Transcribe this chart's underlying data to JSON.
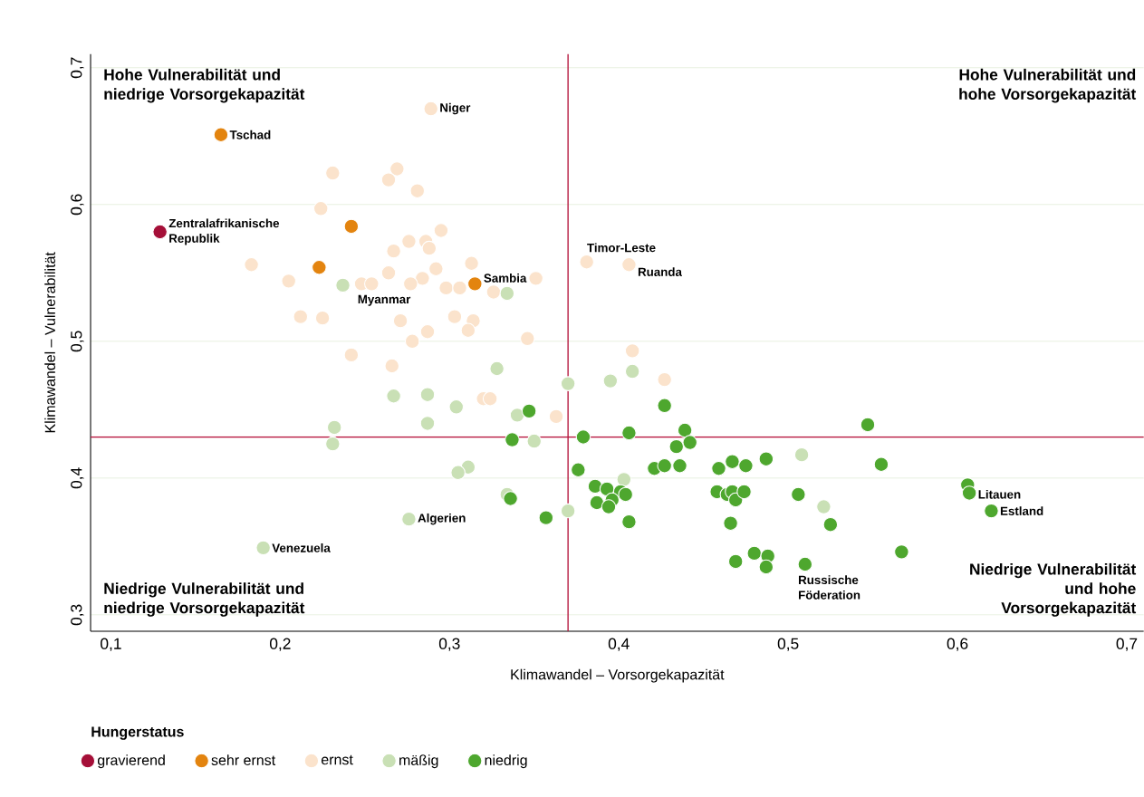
{
  "chart_data": {
    "type": "scatter",
    "xlabel": "Klimawandel – Vorsorgekapazität",
    "ylabel": "Klimawandel – Vulnerabilität",
    "legend_title": "Hungerstatus",
    "legend": "bottom",
    "grid": "y",
    "marker": "circle",
    "xlim": [
      0.088,
      0.71
    ],
    "ylim": [
      0.288,
      0.71
    ],
    "xticks": [
      {
        "value": 0.1,
        "label": "0,1"
      },
      {
        "value": 0.2,
        "label": "0,2"
      },
      {
        "value": 0.3,
        "label": "0,3"
      },
      {
        "value": 0.4,
        "label": "0,4"
      },
      {
        "value": 0.5,
        "label": "0,5"
      },
      {
        "value": 0.6,
        "label": "0,6"
      },
      {
        "value": 0.7,
        "label": "0,7"
      }
    ],
    "yticks": [
      {
        "value": 0.3,
        "label": "0,3"
      },
      {
        "value": 0.4,
        "label": "0,4"
      },
      {
        "value": 0.5,
        "label": "0,5"
      },
      {
        "value": 0.6,
        "label": "0,6"
      },
      {
        "value": 0.7,
        "label": "0,7"
      }
    ],
    "ref_lines": [
      {
        "axis": "x",
        "value": 0.37,
        "color": "#b5123a"
      },
      {
        "axis": "y",
        "value": 0.43,
        "color": "#b5123a"
      }
    ],
    "series": [
      {
        "name": "gravierend",
        "color": "#a50f38",
        "x": [
          0.129
        ],
        "values": [
          0.58
        ]
      },
      {
        "name": "sehr ernst",
        "color": "#e3840f",
        "x": [
          0.165,
          0.242,
          0.223,
          0.315
        ],
        "values": [
          0.651,
          0.584,
          0.554,
          0.542
        ]
      },
      {
        "name": "ernst",
        "color": "#fbe3cc",
        "x": [
          0.289,
          0.231,
          0.269,
          0.264,
          0.281,
          0.224,
          0.295,
          0.276,
          0.286,
          0.288,
          0.267,
          0.183,
          0.313,
          0.292,
          0.264,
          0.205,
          0.284,
          0.248,
          0.254,
          0.277,
          0.298,
          0.306,
          0.326,
          0.351,
          0.212,
          0.225,
          0.271,
          0.303,
          0.314,
          0.311,
          0.287,
          0.278,
          0.346,
          0.242,
          0.266,
          0.381,
          0.406,
          0.408,
          0.427,
          0.32,
          0.324,
          0.363
        ],
        "values": [
          0.67,
          0.623,
          0.626,
          0.618,
          0.61,
          0.597,
          0.581,
          0.573,
          0.573,
          0.568,
          0.566,
          0.556,
          0.557,
          0.553,
          0.55,
          0.544,
          0.546,
          0.542,
          0.542,
          0.542,
          0.539,
          0.539,
          0.536,
          0.546,
          0.518,
          0.517,
          0.515,
          0.518,
          0.515,
          0.508,
          0.507,
          0.5,
          0.502,
          0.49,
          0.482,
          0.558,
          0.556,
          0.493,
          0.472,
          0.458,
          0.458,
          0.445
        ]
      },
      {
        "name": "mäßig",
        "color": "#c9e0b5",
        "x": [
          0.237,
          0.334,
          0.408,
          0.395,
          0.37,
          0.328,
          0.267,
          0.287,
          0.304,
          0.34,
          0.232,
          0.287,
          0.231,
          0.35,
          0.311,
          0.305,
          0.334,
          0.276,
          0.37,
          0.19,
          0.508,
          0.403,
          0.521
        ],
        "values": [
          0.541,
          0.535,
          0.478,
          0.471,
          0.469,
          0.48,
          0.46,
          0.461,
          0.452,
          0.446,
          0.437,
          0.44,
          0.425,
          0.427,
          0.408,
          0.404,
          0.388,
          0.37,
          0.376,
          0.349,
          0.417,
          0.399,
          0.379
        ]
      },
      {
        "name": "niedrig",
        "color": "#4ea72e",
        "x": [
          0.347,
          0.337,
          0.379,
          0.376,
          0.336,
          0.357,
          0.427,
          0.406,
          0.439,
          0.442,
          0.434,
          0.547,
          0.421,
          0.427,
          0.436,
          0.459,
          0.467,
          0.475,
          0.487,
          0.555,
          0.386,
          0.393,
          0.401,
          0.404,
          0.396,
          0.387,
          0.394,
          0.406,
          0.458,
          0.464,
          0.467,
          0.469,
          0.474,
          0.506,
          0.525,
          0.466,
          0.48,
          0.488,
          0.487,
          0.469,
          0.51,
          0.567,
          0.606,
          0.607,
          0.62
        ],
        "values": [
          0.449,
          0.428,
          0.43,
          0.406,
          0.385,
          0.371,
          0.453,
          0.433,
          0.435,
          0.426,
          0.423,
          0.439,
          0.407,
          0.409,
          0.409,
          0.407,
          0.412,
          0.409,
          0.414,
          0.41,
          0.394,
          0.392,
          0.39,
          0.388,
          0.384,
          0.382,
          0.379,
          0.368,
          0.39,
          0.388,
          0.39,
          0.384,
          0.39,
          0.388,
          0.366,
          0.367,
          0.345,
          0.343,
          0.335,
          0.339,
          0.337,
          0.346,
          0.395,
          0.389,
          0.376
        ]
      }
    ],
    "annotations": [
      "Hohe Vulnerabilität und niedrige Vorsorgekapazität",
      "Hohe Vulnerabilität und hohe Vorsorgekapazität",
      "Niedrige Vulnerabilität und niedrige Vorsorgekapazität",
      "Niedrige Vulnerabilität und hohe Vorsorgekapazität",
      {
        "text": "Niger",
        "x": 0.289,
        "y": 0.67
      },
      {
        "text": "Tschad",
        "x": 0.165,
        "y": 0.651
      },
      {
        "text": "Zentralafrikanische Republik",
        "x": 0.129,
        "y": 0.58
      },
      {
        "text": "Timor-Leste",
        "x": 0.381,
        "y": 0.558
      },
      {
        "text": "Ruanda",
        "x": 0.406,
        "y": 0.556
      },
      {
        "text": "Sambia",
        "x": 0.315,
        "y": 0.542
      },
      {
        "text": "Myanmar",
        "x": 0.237,
        "y": 0.541
      },
      {
        "text": "Algerien",
        "x": 0.276,
        "y": 0.37
      },
      {
        "text": "Venezuela",
        "x": 0.19,
        "y": 0.349
      },
      {
        "text": "Russische Föderation",
        "x": 0.51,
        "y": 0.337
      },
      {
        "text": "Litauen",
        "x": 0.607,
        "y": 0.389
      },
      {
        "text": "Estland",
        "x": 0.62,
        "y": 0.376
      }
    ]
  }
}
